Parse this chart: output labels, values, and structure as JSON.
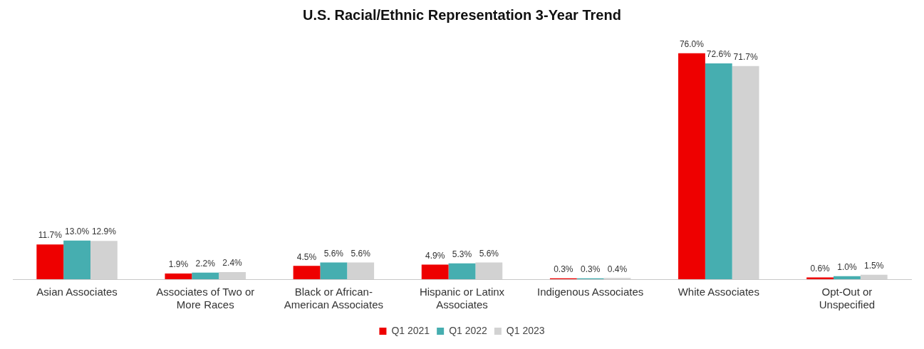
{
  "chart_data": {
    "type": "bar",
    "title": "U.S. Racial/Ethnic Representation 3-Year Trend",
    "categories": [
      "Asian Associates",
      "Associates of Two or More Races",
      "Black or African-American Associates",
      "Hispanic or Latinx Associates",
      "Indigenous Associates",
      "White Associates",
      "Opt-Out or Unspecified"
    ],
    "series": [
      {
        "name": "Q1 2021",
        "color": "#ee0000",
        "values": [
          11.7,
          1.9,
          4.5,
          4.9,
          0.3,
          76.0,
          0.6
        ],
        "value_labels": [
          "11.7%",
          "1.9%",
          "4.5%",
          "4.9%",
          "0.3%",
          "76.0%",
          "0.6%"
        ]
      },
      {
        "name": "Q1 2022",
        "color": "#46aeb0",
        "values": [
          13.0,
          2.2,
          5.6,
          5.3,
          0.3,
          72.6,
          1.0
        ],
        "value_labels": [
          "13.0%",
          "2.2%",
          "5.6%",
          "5.3%",
          "0.3%",
          "72.6%",
          "1.0%"
        ]
      },
      {
        "name": "Q1 2023",
        "color": "#d2d2d2",
        "values": [
          12.9,
          2.4,
          5.6,
          5.6,
          0.4,
          71.7,
          1.5
        ],
        "value_labels": [
          "12.9%",
          "2.4%",
          "5.6%",
          "5.6%",
          "0.4%",
          "71.7%",
          "1.5%"
        ]
      }
    ],
    "legend": "bottom",
    "grid": false
  }
}
